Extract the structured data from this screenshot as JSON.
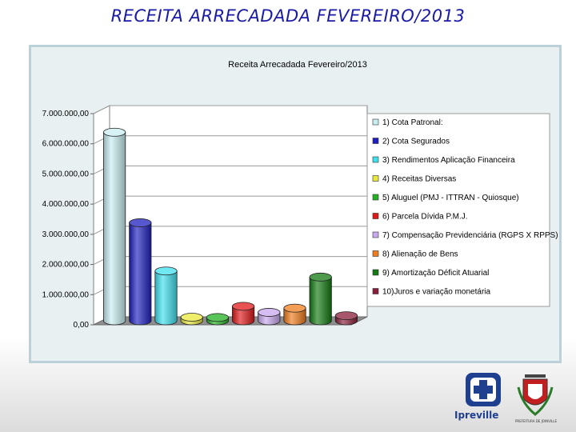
{
  "slide": {
    "title": "RECEITA ARRECADADA FEVEREIRO/2013"
  },
  "logos": {
    "ipreville_label": "Ipreville",
    "prefeitura_label": "PREFEITURA DE JOINVILLE"
  },
  "colors": {
    "title": "#1a1aa6",
    "frame_bg": "#e9f0f2",
    "frame_border": "#bcd0d8"
  },
  "chart_data": {
    "type": "bar",
    "title": "Receita Arrecadada Fevereiro/2013",
    "xlabel": "",
    "ylabel": "",
    "ylim": [
      0,
      7000000
    ],
    "yticks": [
      {
        "value": 0,
        "label": "0,00"
      },
      {
        "value": 1000000,
        "label": "1.000.000,00"
      },
      {
        "value": 2000000,
        "label": "2.000.000,00"
      },
      {
        "value": 3000000,
        "label": "3.000.000,00"
      },
      {
        "value": 4000000,
        "label": "4.000.000,00"
      },
      {
        "value": 5000000,
        "label": "5.000.000,00"
      },
      {
        "value": 6000000,
        "label": "6.000.000,00"
      },
      {
        "value": 7000000,
        "label": "7.000.000,00"
      }
    ],
    "grid": true,
    "legend_position": "right",
    "series": [
      {
        "name": "1) Cota Patronal:",
        "value": 6250000,
        "color": "#c8eef2"
      },
      {
        "name": "2) Cota Segurados",
        "value": 3250000,
        "color": "#1f1fc0"
      },
      {
        "name": "3) Rendimentos Aplicação Financeira",
        "value": 1650000,
        "color": "#3fe0ee"
      },
      {
        "name": "4) Receitas Diversas",
        "value": 120000,
        "color": "#e8e83a"
      },
      {
        "name": "5) Aluguel (PMJ - ITTRAN - Quiosque)",
        "value": 110000,
        "color": "#22b222"
      },
      {
        "name": "6) Parcela Dívida P.M.J.",
        "value": 480000,
        "color": "#e01818"
      },
      {
        "name": "7) Compensação Previdenciária (RGPS X RPPS)",
        "value": 280000,
        "color": "#c8a8ee"
      },
      {
        "name": "8) Alienação de Bens",
        "value": 420000,
        "color": "#f07c1c"
      },
      {
        "name": "9) Amortização Déficit Atuarial",
        "value": 1450000,
        "color": "#137a13"
      },
      {
        "name": "10)Juros e variação monetária",
        "value": 170000,
        "color": "#8a1e3a"
      }
    ]
  }
}
